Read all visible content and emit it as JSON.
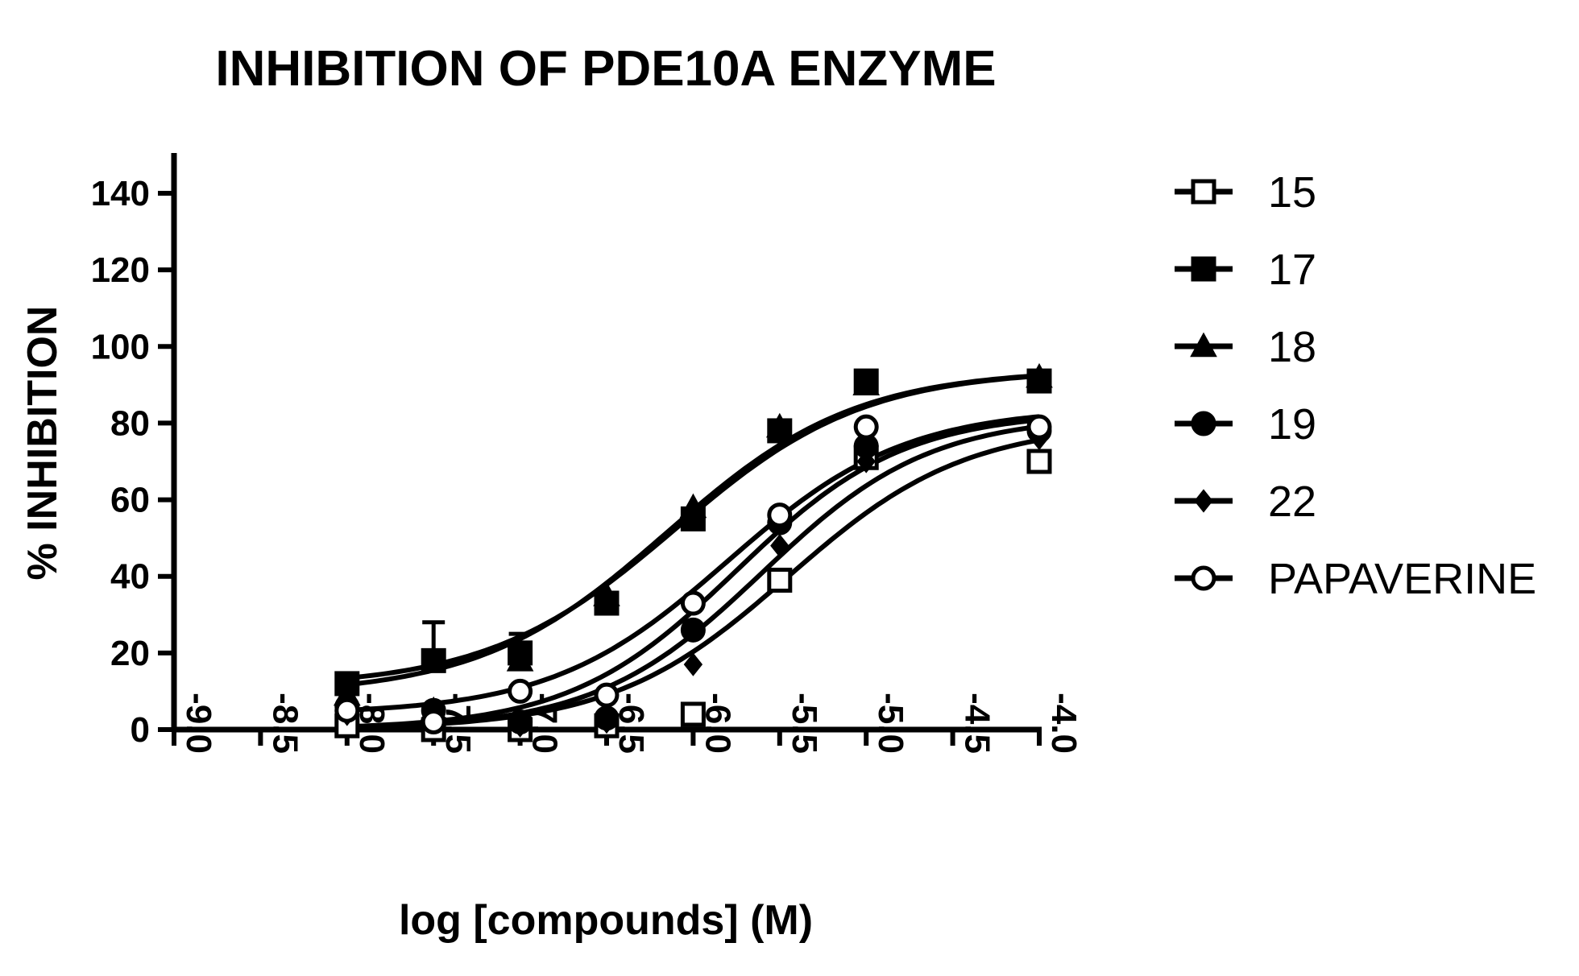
{
  "chart_data": {
    "type": "scatter",
    "title": "INHIBITION OF PDE10A ENZYME",
    "xlabel": "log [compounds] (M)",
    "ylabel": "% INHIBITION",
    "xlim": [
      -9.0,
      -4.0
    ],
    "ylim": [
      0,
      150
    ],
    "x_ticks": [
      "-9.0",
      "-8.5",
      "-8.0",
      "-7.5",
      "-7.0",
      "-6.5",
      "-6.0",
      "-5.5",
      "-5.0",
      "-4.5",
      "-4.0"
    ],
    "y_ticks": [
      "0",
      "20",
      "40",
      "60",
      "80",
      "100",
      "120",
      "140"
    ],
    "legend_position": "right",
    "grid": false,
    "x": [
      -8.0,
      -7.5,
      -7.0,
      -6.5,
      -6.0,
      -5.5,
      -5.0,
      -4.0
    ],
    "series": [
      {
        "name": "15",
        "marker": "open-square",
        "values": [
          1,
          0,
          0,
          1,
          4,
          39,
          71,
          70
        ],
        "fit": {
          "bottom": 0,
          "top": 80,
          "log_ec50": -5.45,
          "hill": 0.85
        }
      },
      {
        "name": "17",
        "marker": "filled-square",
        "values": [
          12,
          18,
          20,
          33,
          55,
          78,
          91,
          91
        ],
        "errors": [
          0,
          10,
          5,
          0,
          0,
          0,
          0,
          0
        ],
        "fit": {
          "bottom": 11,
          "top": 94,
          "log_ec50": -6.1,
          "hill": 0.8
        }
      },
      {
        "name": "18",
        "marker": "filled-triangle",
        "values": [
          9,
          5,
          18,
          35,
          58,
          79,
          90,
          92
        ],
        "fit": {
          "bottom": 9,
          "top": 94,
          "log_ec50": -6.15,
          "hill": 0.8
        }
      },
      {
        "name": "19",
        "marker": "filled-circle",
        "values": [
          6,
          5,
          2,
          3,
          26,
          54,
          74,
          78
        ],
        "fit": {
          "bottom": 0,
          "top": 83,
          "log_ec50": -5.75,
          "hill": 0.9
        }
      },
      {
        "name": "22",
        "marker": "filled-diamond",
        "values": [
          4,
          3,
          1,
          2,
          17,
          48,
          70,
          76
        ],
        "fit": {
          "bottom": 0,
          "top": 82,
          "log_ec50": -5.6,
          "hill": 0.9
        }
      },
      {
        "name": "PAPAVERINE",
        "marker": "open-circle",
        "values": [
          5,
          2,
          10,
          9,
          33,
          56,
          79,
          79
        ],
        "fit": {
          "bottom": 4,
          "top": 84,
          "log_ec50": -5.8,
          "hill": 0.85
        }
      }
    ]
  }
}
